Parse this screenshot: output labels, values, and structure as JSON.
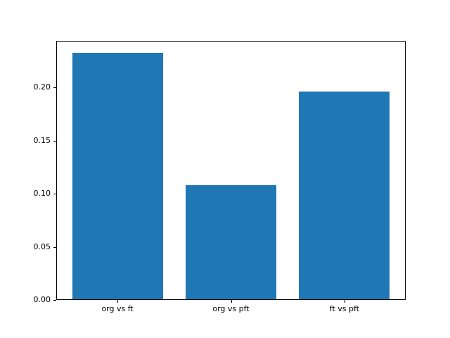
{
  "chart_data": {
    "type": "bar",
    "title": "",
    "xlabel": "",
    "ylabel": "",
    "categories": [
      "org vs ft",
      "org vs pft",
      "ft vs pft"
    ],
    "values": [
      0.233,
      0.108,
      0.196
    ],
    "bar_width": 0.8,
    "xlim": [
      -0.54,
      2.54
    ],
    "ylim": [
      0,
      0.244
    ],
    "yticks": [
      0.0,
      0.05,
      0.1,
      0.15,
      0.2
    ],
    "ytick_labels": [
      "0.00",
      "0.05",
      "0.10",
      "0.15",
      "0.20"
    ],
    "grid": false,
    "legend": null,
    "colors": {
      "bar": "#1f77b4",
      "spine": "#000000",
      "text": "#000000",
      "background": "#ffffff"
    }
  }
}
